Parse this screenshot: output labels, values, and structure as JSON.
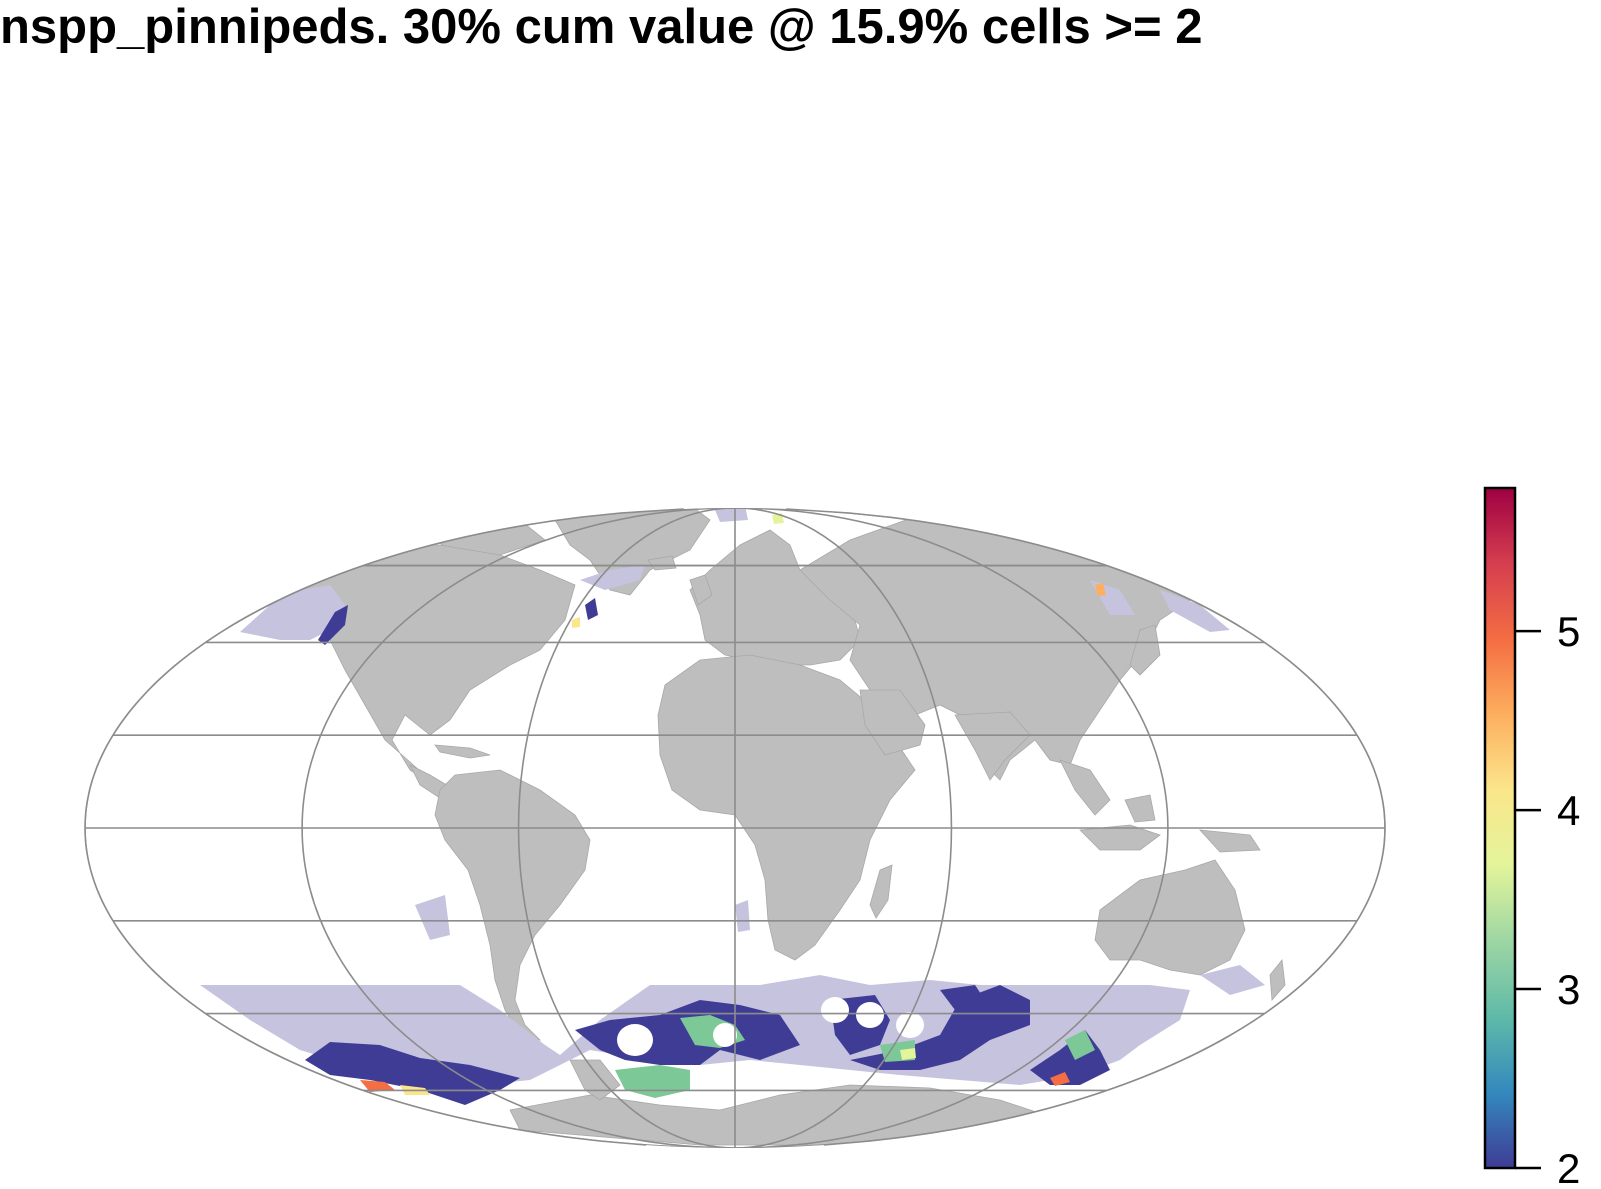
{
  "title": "nspp_pinnipeds. 30% cum value @ 15.9% cells >= 2",
  "map": {
    "projection": "Mollweide",
    "land_color": "#bebebe",
    "graticule_color": "#8c8c8c",
    "low_value_color": "#c6c3df",
    "legend": {
      "min": 2,
      "max": 5.8,
      "ticks": [
        {
          "value": 2,
          "label": "2"
        },
        {
          "value": 3,
          "label": "3"
        },
        {
          "value": 4,
          "label": "4"
        },
        {
          "value": 5,
          "label": "5"
        }
      ],
      "colors": [
        "#3f3c96",
        "#3389bd",
        "#5fbaa8",
        "#9dd6a4",
        "#e3f49a",
        "#fbe68b",
        "#fdaf5e",
        "#f46d43",
        "#d53e4f",
        "#9e0142"
      ]
    }
  }
}
